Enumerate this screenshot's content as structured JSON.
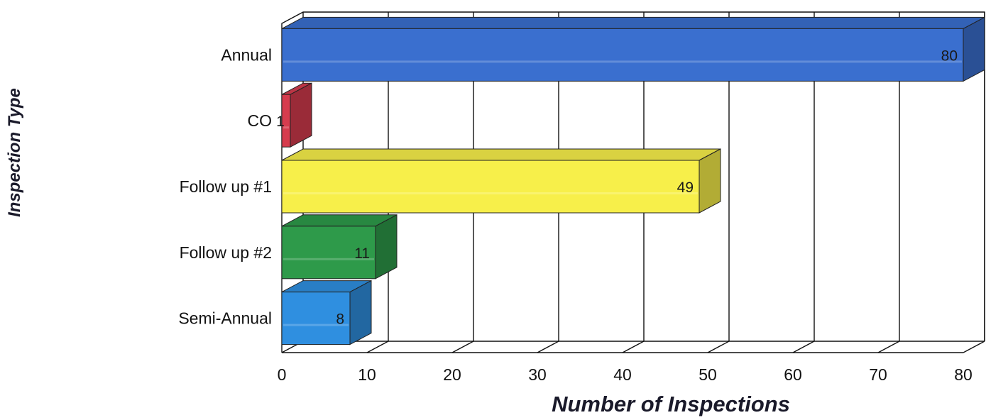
{
  "chart_data": {
    "type": "bar",
    "orientation": "horizontal",
    "three_d": true,
    "categories": [
      "Annual",
      "CO",
      "Follow up #1",
      "Follow up #2",
      "Semi-Annual"
    ],
    "values": [
      80,
      1,
      49,
      11,
      8
    ],
    "data_labels": [
      "80",
      "1",
      "49",
      "11",
      "8"
    ],
    "colors": [
      "#3a6fcf",
      "#d63c4e",
      "#f7ef4a",
      "#2e9a4a",
      "#2f8fe0"
    ],
    "xlabel": "Number of Inspections",
    "ylabel": "Inspection Type",
    "xlim": [
      0,
      80
    ],
    "x_ticks": [
      "0",
      "10",
      "20",
      "30",
      "40",
      "50",
      "60",
      "70",
      "80"
    ],
    "grid": true,
    "legend": "none"
  }
}
